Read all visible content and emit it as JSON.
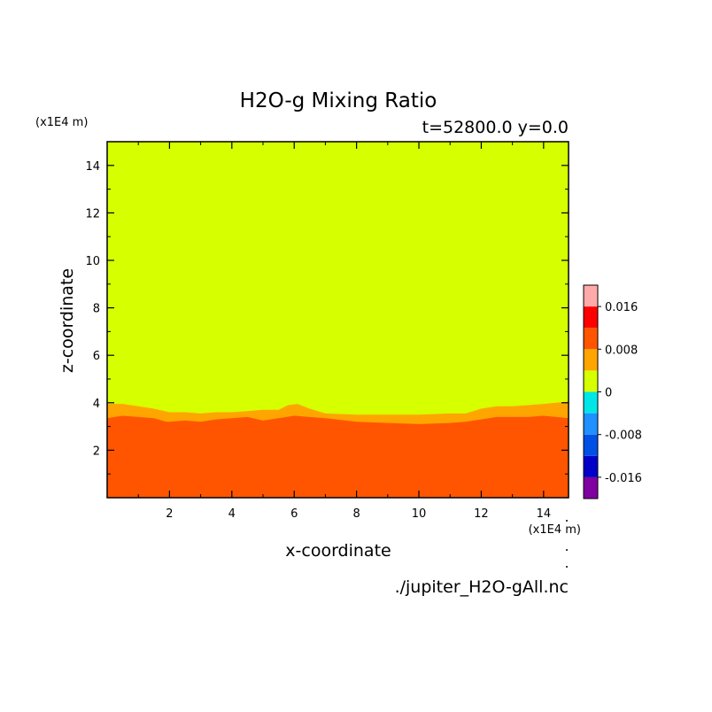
{
  "chart_data": {
    "type": "heatmap",
    "title": "H2O-g Mixing Ratio",
    "subtitle": "t=52800.0 y=0.0",
    "xlabel": "x-coordinate",
    "ylabel": "z-coordinate",
    "x_unit": "(x1E4 m)",
    "y_unit": "(x1E4 m)",
    "source_file": "./jupiter_H2O-gAll.nc",
    "xlim": [
      0,
      14.8
    ],
    "ylim": [
      0,
      15
    ],
    "x_ticks": [
      2,
      4,
      6,
      8,
      10,
      12,
      14
    ],
    "y_ticks": [
      2,
      4,
      6,
      8,
      10,
      12,
      14
    ],
    "x_tick_labels": [
      "2",
      "4",
      "6",
      "8",
      "10",
      "12",
      "14"
    ],
    "y_tick_labels": [
      "2",
      "4",
      "6",
      "8",
      "10",
      "12",
      "14"
    ],
    "colorbar": {
      "levels": [
        -0.02,
        -0.016,
        -0.012,
        -0.008,
        -0.004,
        0,
        0.004,
        0.008,
        0.012,
        0.016,
        0.02
      ],
      "colors": [
        "#8000a0",
        "#0000c8",
        "#0050e6",
        "#1e90ff",
        "#00e6e6",
        "#d6ff00",
        "#ffa500",
        "#ff5500",
        "#ff0000",
        "#ffaaaa"
      ],
      "label_values": [
        -0.016,
        -0.008,
        0,
        0.008,
        0.016
      ],
      "labels": [
        "-0.016",
        "-0.008",
        "0",
        "0.008",
        "0.016"
      ]
    },
    "regions": [
      {
        "name": "bottom",
        "color": "#ff5500",
        "boundary_x": [
          0,
          0.5,
          1.0,
          1.5,
          1.9,
          2.0,
          2.5,
          3.0,
          3.5,
          4.0,
          4.5,
          5.0,
          5.5,
          6.0,
          6.5,
          7.0,
          8.0,
          9.0,
          10.0,
          11.0,
          11.5,
          12.0,
          12.5,
          13.0,
          13.5,
          14.0,
          14.8
        ],
        "boundary_z": [
          3.35,
          3.45,
          3.4,
          3.35,
          3.2,
          3.2,
          3.25,
          3.2,
          3.3,
          3.35,
          3.4,
          3.25,
          3.35,
          3.45,
          3.4,
          3.35,
          3.2,
          3.15,
          3.1,
          3.15,
          3.2,
          3.3,
          3.4,
          3.4,
          3.4,
          3.45,
          3.35
        ]
      },
      {
        "name": "orange band",
        "color": "#ffa500",
        "boundary_x": [
          0,
          0.5,
          1.0,
          1.5,
          2.0,
          2.5,
          3.0,
          3.5,
          4.0,
          4.5,
          5.0,
          5.5,
          5.8,
          6.1,
          6.5,
          7.0,
          8.0,
          9.0,
          10.0,
          11.0,
          11.5,
          12.0,
          12.5,
          13.0,
          13.5,
          14.0,
          14.8
        ],
        "boundary_z": [
          3.95,
          3.95,
          3.85,
          3.75,
          3.6,
          3.6,
          3.55,
          3.6,
          3.6,
          3.65,
          3.7,
          3.7,
          3.9,
          3.95,
          3.75,
          3.55,
          3.5,
          3.5,
          3.5,
          3.55,
          3.55,
          3.75,
          3.85,
          3.85,
          3.9,
          3.95,
          4.05
        ]
      },
      {
        "name": "upper",
        "color": "#d6ff00"
      }
    ]
  }
}
